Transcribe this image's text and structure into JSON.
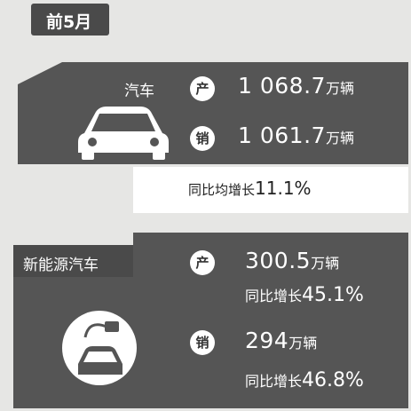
{
  "period": "前5月",
  "auto": {
    "label": "汽车",
    "production": {
      "icon": "产",
      "value": "1 068.7",
      "unit": "万辆"
    },
    "sales": {
      "icon": "销",
      "value": "1 061.7",
      "unit": "万辆"
    },
    "growth": {
      "label": "同比均增长",
      "value": "11.1%"
    }
  },
  "nev": {
    "label": "新能源汽车",
    "production": {
      "icon": "产",
      "value": "300.5",
      "unit": "万辆",
      "growth_label": "同比增长",
      "growth": "45.1%"
    },
    "sales": {
      "icon": "销",
      "value": "294",
      "unit": "万辆",
      "growth_label": "同比增长",
      "growth": "46.8%"
    }
  }
}
